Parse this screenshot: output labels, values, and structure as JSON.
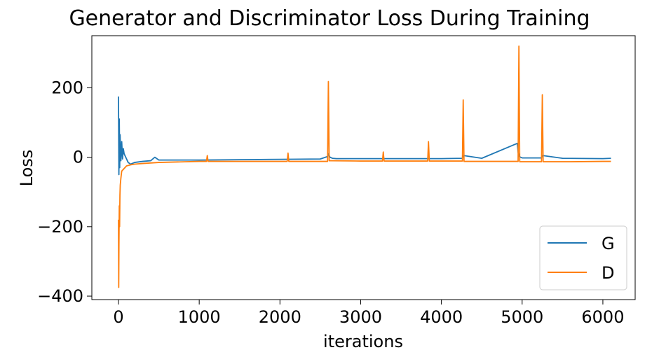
{
  "chart_data": {
    "type": "line",
    "title": "Generator and Discriminator Loss During Training",
    "xlabel": "iterations",
    "ylabel": "Loss",
    "xlim": [
      -330,
      6400
    ],
    "ylim": [
      -410,
      350
    ],
    "xticks": [
      0,
      1000,
      2000,
      3000,
      4000,
      5000,
      6000
    ],
    "xtick_labels": [
      "0",
      "1000",
      "2000",
      "3000",
      "4000",
      "5000",
      "6000"
    ],
    "yticks": [
      -400,
      -200,
      0,
      200
    ],
    "ytick_labels": [
      "−400",
      "−200",
      "0",
      "200"
    ],
    "legend_position": "lower-right",
    "series": [
      {
        "name": "G",
        "color": "#1f77b4",
        "x": [
          0,
          5,
          10,
          15,
          20,
          25,
          30,
          40,
          50,
          60,
          70,
          80,
          100,
          120,
          150,
          200,
          300,
          400,
          450,
          500,
          700,
          1000,
          1500,
          2000,
          2500,
          2590,
          2600,
          2620,
          2650,
          2700,
          3000,
          3500,
          4000,
          4260,
          4270,
          4500,
          4940,
          4950,
          4960,
          5000,
          5240,
          5250,
          5500,
          6000,
          6100
        ],
        "y": [
          175,
          -50,
          110,
          -30,
          65,
          20,
          -10,
          45,
          -5,
          25,
          10,
          5,
          -5,
          -15,
          -20,
          -15,
          -12,
          -10,
          0,
          -8,
          -8,
          -8,
          -7,
          -6,
          -5,
          2,
          10,
          0,
          -3,
          -4,
          -4,
          -4,
          -4,
          -3,
          5,
          -3,
          40,
          15,
          2,
          -2,
          -2,
          5,
          -3,
          -4,
          -3
        ]
      },
      {
        "name": "D",
        "color": "#ff7f0e",
        "x": [
          0,
          3,
          6,
          10,
          14,
          18,
          22,
          30,
          40,
          60,
          80,
          100,
          150,
          200,
          300,
          500,
          1000,
          1090,
          1100,
          1110,
          1500,
          2000,
          2090,
          2100,
          2110,
          2590,
          2600,
          2610,
          3000,
          3270,
          3280,
          3290,
          3830,
          3840,
          3850,
          4260,
          4270,
          4280,
          4950,
          4960,
          4970,
          5240,
          5250,
          5260,
          5600,
          6000,
          6100
        ],
        "y": [
          -180,
          -375,
          -250,
          -140,
          -200,
          -110,
          -80,
          -60,
          -40,
          -35,
          -30,
          -25,
          -22,
          -20,
          -18,
          -15,
          -12,
          -12,
          5,
          -12,
          -12,
          -12,
          -12,
          12,
          -12,
          -12,
          218,
          -10,
          -11,
          -11,
          15,
          -11,
          -11,
          45,
          -11,
          -11,
          165,
          -12,
          -12,
          320,
          -13,
          -13,
          180,
          -13,
          -13,
          -12,
          -12
        ]
      }
    ]
  }
}
